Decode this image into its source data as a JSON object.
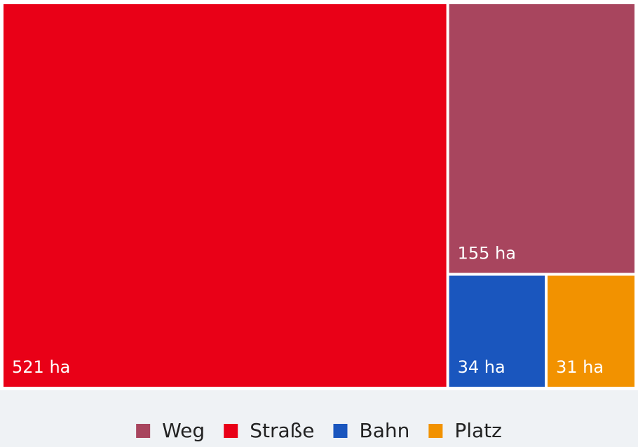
{
  "chart_data": {
    "type": "treemap",
    "categories": [
      "Weg",
      "Straße",
      "Bahn",
      "Platz"
    ],
    "values": [
      155,
      521,
      34,
      31
    ],
    "value_labels": [
      "155 ha",
      "521 ha",
      "34 ha",
      "31 ha"
    ],
    "colors": [
      "#a8455e",
      "#e90017",
      "#1a56be",
      "#f29200"
    ],
    "legend": "bottom"
  }
}
